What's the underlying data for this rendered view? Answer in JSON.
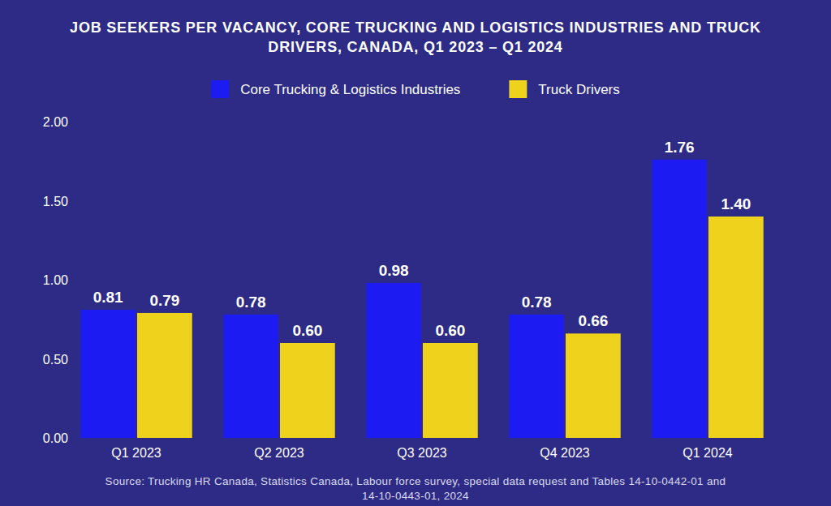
{
  "chart_data": {
    "type": "bar",
    "title": "JOB SEEKERS PER VACANCY, CORE TRUCKING AND LOGISTICS INDUSTRIES AND TRUCK DRIVERS, CANADA, Q1 2023 – Q1 2024",
    "source": "Source: Trucking HR Canada, Statistics Canada, Labour force survey, special data request and Tables 14-10-0442-01 and 14-10-0443-01, 2024",
    "categories": [
      "Q1 2023",
      "Q2 2023",
      "Q3 2023",
      "Q4 2023",
      "Q1 2024"
    ],
    "series": [
      {
        "name": "Core Trucking & Logistics Industries",
        "color": "#1c1cf2",
        "values": [
          0.81,
          0.78,
          0.98,
          0.78,
          1.76
        ],
        "value_labels": [
          "0.81",
          "0.78",
          "0.98",
          "0.78",
          "1.76"
        ]
      },
      {
        "name": "Truck Drivers",
        "color": "#eed21b",
        "values": [
          0.79,
          0.6,
          0.6,
          0.66,
          1.4
        ],
        "value_labels": [
          "0.79",
          "0.60",
          "0.60",
          "0.66",
          "1.40"
        ]
      }
    ],
    "ylim": [
      0,
      2
    ],
    "yticks": [
      {
        "value": 0,
        "label": "0.00"
      },
      {
        "value": 0.5,
        "label": "0.50"
      },
      {
        "value": 1,
        "label": "1.00"
      },
      {
        "value": 1.5,
        "label": "1.50"
      },
      {
        "value": 2,
        "label": "2.00"
      }
    ],
    "grid": false,
    "legend": "top",
    "data_labels": true
  }
}
